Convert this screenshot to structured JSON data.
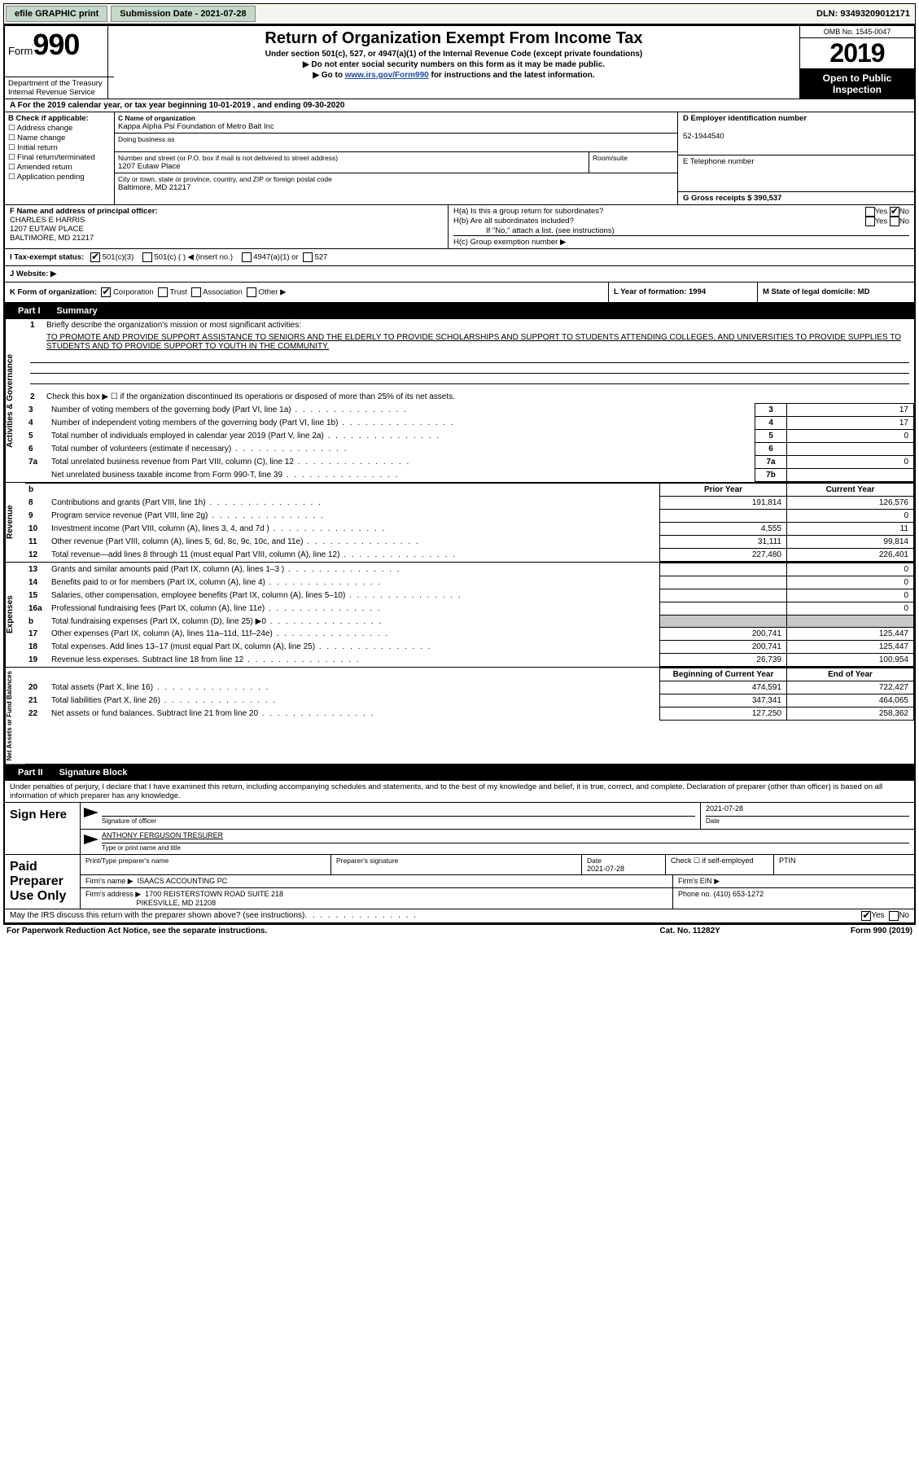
{
  "topbar": {
    "efile": "efile GRAPHIC print",
    "submission_label": "Submission Date - 2021-07-28",
    "dln": "DLN: 93493209012171"
  },
  "header": {
    "form_label": "Form",
    "form_number": "990",
    "dept1": "Department of the Treasury",
    "dept2": "Internal Revenue Service",
    "title": "Return of Organization Exempt From Income Tax",
    "subtitle1": "Under section 501(c), 527, or 4947(a)(1) of the Internal Revenue Code (except private foundations)",
    "subtitle2": "▶ Do not enter social security numbers on this form as it may be made public.",
    "subtitle3_pre": "▶ Go to ",
    "subtitle3_link": "www.irs.gov/Form990",
    "subtitle3_post": " for instructions and the latest information.",
    "omb": "OMB No. 1545-0047",
    "year": "2019",
    "open_public": "Open to Public Inspection"
  },
  "line_a": "A For the 2019 calendar year, or tax year beginning 10-01-2019     , and ending 09-30-2020",
  "section_b": {
    "label": "B Check if applicable:",
    "items": [
      "Address change",
      "Name change",
      "Initial return",
      "Final return/terminated",
      "Amended return",
      "Application pending"
    ]
  },
  "section_c": {
    "name_label": "C Name of organization",
    "name": "Kappa Alpha Psi Foundation of Metro Balt Inc",
    "dba_label": "Doing business as",
    "dba": "",
    "street_label": "Number and street (or P.O. box if mail is not delivered to street address)",
    "street": "1207 Eutaw Place",
    "room_label": "Room/suite",
    "room": "",
    "city_label": "City or town, state or province, country, and ZIP or foreign postal code",
    "city": "Baltimore, MD  21217"
  },
  "section_d": {
    "label": "D Employer identification number",
    "value": "52-1944540"
  },
  "section_e": {
    "label": "E Telephone number",
    "value": ""
  },
  "section_g": {
    "label": "G Gross receipts $ 390,537"
  },
  "section_f": {
    "label": "F  Name and address of principal officer:",
    "name": "CHARLES E HARRIS",
    "addr1": "1207 EUTAW PLACE",
    "addr2": "BALTIMORE, MD  21217"
  },
  "section_h": {
    "a_label": "H(a)  Is this a group return for subordinates?",
    "a_yes": "Yes",
    "a_no": "No",
    "b_label": "H(b)  Are all subordinates included?",
    "b_yes": "Yes",
    "b_no": "No",
    "b_note": "If \"No,\" attach a list. (see instructions)",
    "c_label": "H(c)  Group exemption number ▶"
  },
  "section_i": {
    "label": "I   Tax-exempt status:",
    "c3": "501(c)(3)",
    "c_other": "501(c) (  ) ◀ (insert no.)",
    "a1": "4947(a)(1) or",
    "s527": "527"
  },
  "section_j": {
    "label": "J   Website: ▶"
  },
  "section_k": {
    "label": "K Form of organization:",
    "corp": "Corporation",
    "trust": "Trust",
    "assoc": "Association",
    "other": "Other ▶"
  },
  "section_l": {
    "label": "L Year of formation: 1994"
  },
  "section_m": {
    "label": "M State of legal domicile: MD"
  },
  "part1": {
    "label": "Part I",
    "title": "Summary",
    "q1": "Briefly describe the organization's mission or most significant activities:",
    "mission": "TO PROMOTE AND PROVIDE SUPPORT ASSISTANCE TO SENIORS AND THE ELDERLY TO PROVIDE SCHOLARSHIPS AND SUPPORT TO STUDENTS ATTENDING COLLEGES, AND UNIVERSITIES TO PROVIDE SUPPLIES TO STUDENTS AND TO PROVIDE SUPPORT TO YOUTH IN THE COMMUNITY.",
    "q2": "Check this box ▶ ☐  if the organization discontinued its operations or disposed of more than 25% of its net assets.",
    "rows_ag": [
      {
        "n": "3",
        "t": "Number of voting members of the governing body (Part VI, line 1a)",
        "box": "3",
        "v": "17"
      },
      {
        "n": "4",
        "t": "Number of independent voting members of the governing body (Part VI, line 1b)",
        "box": "4",
        "v": "17"
      },
      {
        "n": "5",
        "t": "Total number of individuals employed in calendar year 2019 (Part V, line 2a)",
        "box": "5",
        "v": "0"
      },
      {
        "n": "6",
        "t": "Total number of volunteers (estimate if necessary)",
        "box": "6",
        "v": ""
      },
      {
        "n": "7a",
        "t": "Total unrelated business revenue from Part VIII, column (C), line 12",
        "box": "7a",
        "v": "0"
      },
      {
        "n": "",
        "t": "Net unrelated business taxable income from Form 990-T, line 39",
        "box": "7b",
        "v": ""
      }
    ],
    "col_prior": "Prior Year",
    "col_current": "Current Year",
    "rows_rev": [
      {
        "n": "8",
        "t": "Contributions and grants (Part VIII, line 1h)",
        "py": "191,814",
        "cy": "126,576"
      },
      {
        "n": "9",
        "t": "Program service revenue (Part VIII, line 2g)",
        "py": "",
        "cy": "0"
      },
      {
        "n": "10",
        "t": "Investment income (Part VIII, column (A), lines 3, 4, and 7d )",
        "py": "4,555",
        "cy": "11"
      },
      {
        "n": "11",
        "t": "Other revenue (Part VIII, column (A), lines 5, 6d, 8c, 9c, 10c, and 11e)",
        "py": "31,111",
        "cy": "99,814"
      },
      {
        "n": "12",
        "t": "Total revenue—add lines 8 through 11 (must equal Part VIII, column (A), line 12)",
        "py": "227,480",
        "cy": "226,401"
      }
    ],
    "rows_exp": [
      {
        "n": "13",
        "t": "Grants and similar amounts paid (Part IX, column (A), lines 1–3 )",
        "py": "",
        "cy": "0"
      },
      {
        "n": "14",
        "t": "Benefits paid to or for members (Part IX, column (A), line 4)",
        "py": "",
        "cy": "0"
      },
      {
        "n": "15",
        "t": "Salaries, other compensation, employee benefits (Part IX, column (A), lines 5–10)",
        "py": "",
        "cy": "0"
      },
      {
        "n": "16a",
        "t": "Professional fundraising fees (Part IX, column (A), line 11e)",
        "py": "",
        "cy": "0"
      },
      {
        "n": "b",
        "t": "Total fundraising expenses (Part IX, column (D), line 25) ▶0",
        "py": "shaded",
        "cy": "shaded"
      },
      {
        "n": "17",
        "t": "Other expenses (Part IX, column (A), lines 11a–11d, 11f–24e)",
        "py": "200,741",
        "cy": "125,447"
      },
      {
        "n": "18",
        "t": "Total expenses. Add lines 13–17 (must equal Part IX, column (A), line 25)",
        "py": "200,741",
        "cy": "125,447"
      },
      {
        "n": "19",
        "t": "Revenue less expenses. Subtract line 18 from line 12",
        "py": "26,739",
        "cy": "100,954"
      }
    ],
    "col_boy": "Beginning of Current Year",
    "col_eoy": "End of Year",
    "rows_na": [
      {
        "n": "20",
        "t": "Total assets (Part X, line 16)",
        "py": "474,591",
        "cy": "722,427"
      },
      {
        "n": "21",
        "t": "Total liabilities (Part X, line 26)",
        "py": "347,341",
        "cy": "464,065"
      },
      {
        "n": "22",
        "t": "Net assets or fund balances. Subtract line 21 from line 20",
        "py": "127,250",
        "cy": "258,362"
      }
    ],
    "vtabs": {
      "ag": "Activities & Governance",
      "rev": "Revenue",
      "exp": "Expenses",
      "na": "Net Assets or Fund Balances"
    }
  },
  "part2": {
    "label": "Part II",
    "title": "Signature Block",
    "intro": "Under penalties of perjury, I declare that I have examined this return, including accompanying schedules and statements, and to the best of my knowledge and belief, it is true, correct, and complete. Declaration of preparer (other than officer) is based on all information of which preparer has any knowledge.",
    "sign_here": "Sign Here",
    "sig_officer_label": "Signature of officer",
    "sig_date": "2021-07-28",
    "sig_date_label": "Date",
    "officer_name": "ANTHONY FERGUSON  TRESURER",
    "officer_label": "Type or print name and title",
    "paid_label": "Paid Preparer Use Only",
    "prep_name_label": "Print/Type preparer's name",
    "prep_sig_label": "Preparer's signature",
    "prep_date_label": "Date",
    "prep_date": "2021-07-28",
    "self_emp": "Check ☐ if self-employed",
    "ptin_label": "PTIN",
    "firm_name_label": "Firm's name    ▶",
    "firm_name": "ISAACS ACCOUNTING PC",
    "firm_ein_label": "Firm's EIN ▶",
    "firm_addr_label": "Firm's address ▶",
    "firm_addr1": "1700 REISTERSTOWN ROAD SUITE 218",
    "firm_addr2": "PIKESVILLE, MD  21208",
    "firm_phone_label": "Phone no. (410) 653-1272",
    "discuss": "May the IRS discuss this return with the preparer shown above? (see instructions)",
    "yes": "Yes",
    "no": "No"
  },
  "footer": {
    "left": "For Paperwork Reduction Act Notice, see the separate instructions.",
    "mid": "Cat. No. 11282Y",
    "right": "Form 990 (2019)"
  }
}
